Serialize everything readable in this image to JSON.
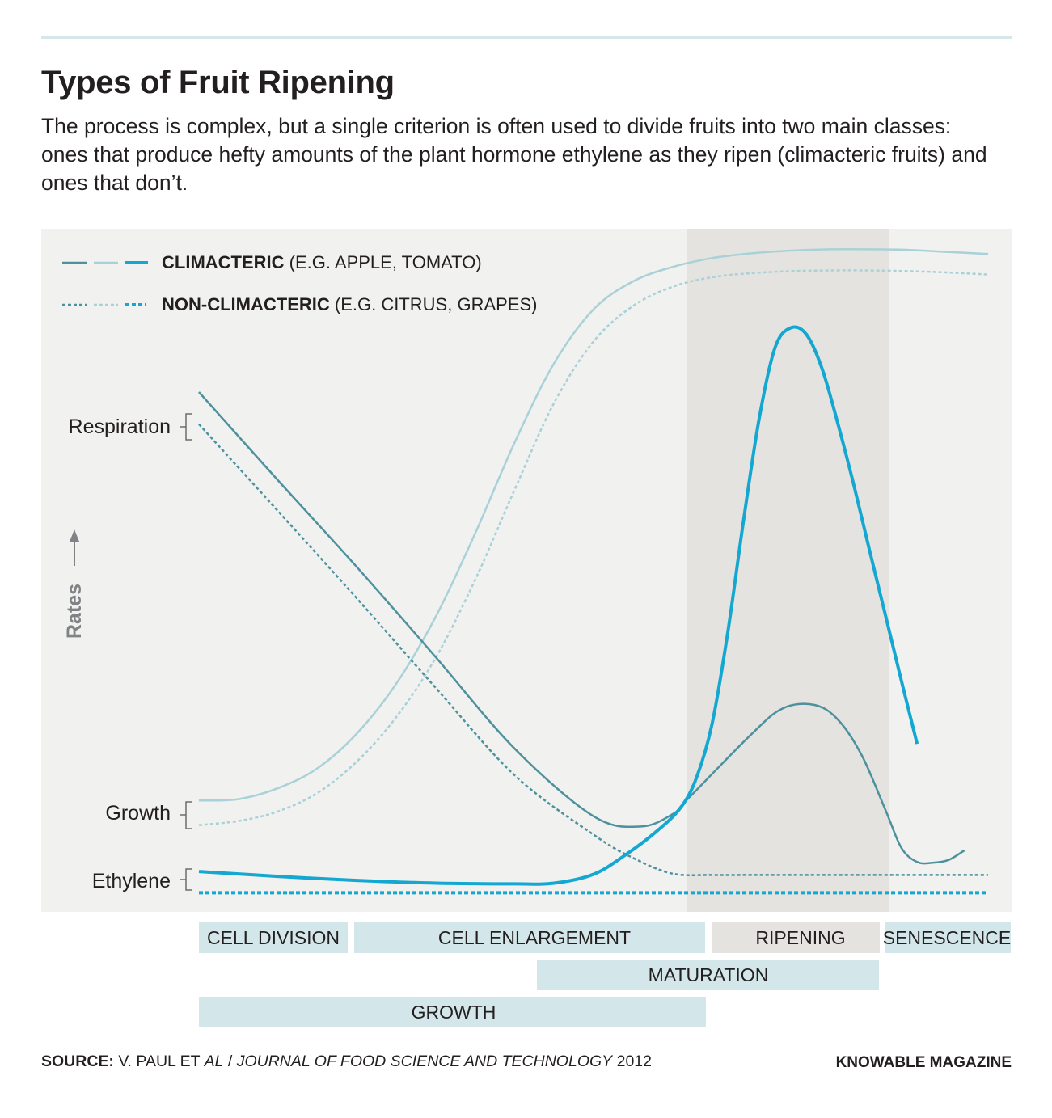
{
  "header": {
    "title": "Types of Fruit Ripening",
    "subtitle": "The process is complex, but a single criterion is often used to divide fruits into two main classes: ones that produce hefty amounts of the plant hormone ethylene as they ripen (climacteric fruits) and ones that don’t."
  },
  "chart_data": {
    "type": "line",
    "title": "Types of Fruit Ripening",
    "ylabel": "Rates",
    "x_domain": [
      0,
      100
    ],
    "y_domain": [
      0,
      100
    ],
    "legend": {
      "placement": "top-left",
      "entries": [
        {
          "key": "climacteric",
          "name": "CLIMACTERIC",
          "note": "(E.G. APPLE, TOMATO)",
          "style": "solid"
        },
        {
          "key": "non_climacteric",
          "name": "NON-CLIMACTERIC",
          "note": "(E.G. CITRUS, GRAPES)",
          "style": "dotted"
        }
      ]
    },
    "row_labels": [
      "Respiration",
      "Growth",
      "Ethylene"
    ],
    "colors": {
      "respiration": "#4e919e",
      "growth": "#a9d1d8",
      "ethylene": "#13a7d1",
      "panel_bg": "#f1f1ef",
      "ripening_band": "#e4e3df",
      "stage_bar": "#d3e6e9",
      "ripening_bar": "#e4e3df",
      "axis_text": "#808285"
    },
    "ripening_band_x": [
      61.8,
      87.5
    ],
    "series": [
      {
        "metric": "Respiration",
        "group": "climacteric",
        "style": "solid",
        "x": [
          0,
          10,
          20,
          30,
          40,
          50,
          56,
          60,
          62,
          70,
          74,
          78,
          81,
          84,
          87,
          89,
          91,
          93,
          95,
          97
        ],
        "y": [
          76.1,
          63.2,
          50.5,
          37.3,
          23.9,
          14.0,
          12.5,
          14.3,
          16.6,
          26.0,
          29.8,
          30.3,
          28.1,
          22.9,
          14.9,
          9.4,
          7.3,
          7.2,
          7.6,
          9.0
        ]
      },
      {
        "metric": "Respiration",
        "group": "non_climacteric",
        "style": "dotted",
        "x": [
          0,
          10,
          20,
          30,
          40,
          50,
          55,
          60,
          65,
          70,
          80,
          90,
          100
        ],
        "y": [
          71.4,
          58.7,
          45.9,
          32.8,
          20.0,
          11.3,
          7.9,
          5.6,
          5.4,
          5.4,
          5.4,
          5.4,
          5.4
        ]
      },
      {
        "metric": "Growth",
        "group": "climacteric",
        "style": "solid",
        "x": [
          0,
          5,
          10,
          15,
          20,
          25,
          30,
          35,
          40,
          45,
          50,
          55,
          60,
          65,
          70,
          75,
          80,
          85,
          90,
          95,
          100
        ],
        "y": [
          16.3,
          16.5,
          18.1,
          21.0,
          26.1,
          33.4,
          43.2,
          55.4,
          68.7,
          80.3,
          88.2,
          92.3,
          94.4,
          95.7,
          96.4,
          96.8,
          97.0,
          97.0,
          96.9,
          96.6,
          96.3
        ]
      },
      {
        "metric": "Growth",
        "group": "non_climacteric",
        "style": "dotted",
        "x": [
          0,
          5,
          10,
          15,
          20,
          25,
          30,
          35,
          40,
          45,
          50,
          55,
          60,
          65,
          70,
          75,
          80,
          85,
          90,
          95,
          100
        ],
        "y": [
          12.7,
          13.3,
          14.7,
          17.4,
          22.0,
          28.5,
          37.2,
          48.6,
          61.8,
          74.5,
          83.5,
          88.7,
          91.5,
          92.9,
          93.5,
          93.8,
          93.9,
          93.9,
          93.8,
          93.6,
          93.3
        ]
      },
      {
        "metric": "Ethylene",
        "group": "climacteric",
        "style": "solid",
        "x": [
          0,
          10,
          20,
          30,
          40,
          45,
          50,
          54,
          58,
          61,
          63,
          65,
          67,
          69,
          71,
          73,
          75,
          77,
          79,
          81,
          83,
          85,
          87,
          89,
          91
        ],
        "y": [
          5.9,
          5.2,
          4.6,
          4.2,
          4.1,
          4.2,
          5.5,
          8.3,
          11.8,
          15.2,
          19.5,
          27.4,
          40.8,
          57.2,
          72.3,
          82.6,
          85.5,
          84.5,
          79.4,
          71.3,
          62.4,
          52.8,
          43.4,
          33.9,
          24.6
        ]
      },
      {
        "metric": "Ethylene",
        "group": "non_climacteric",
        "style": "dotted",
        "x": [
          0,
          100
        ],
        "y": [
          2.8,
          2.8
        ]
      }
    ]
  },
  "stages": [
    {
      "label": "CELL DIVISION"
    },
    {
      "label": "CELL ENLARGEMENT"
    },
    {
      "label": "RIPENING"
    },
    {
      "label": "SENESCENCE"
    },
    {
      "label": "MATURATION"
    },
    {
      "label": "GROWTH"
    }
  ],
  "footer": {
    "source_label": "SOURCE:",
    "source_authors": "V. PAUL ET",
    "source_etal": "AL",
    "source_separator": "/",
    "source_journal": "JOURNAL OF FOOD SCIENCE AND TECHNOLOGY",
    "source_year": "2012",
    "credit": "KNOWABLE MAGAZINE"
  }
}
